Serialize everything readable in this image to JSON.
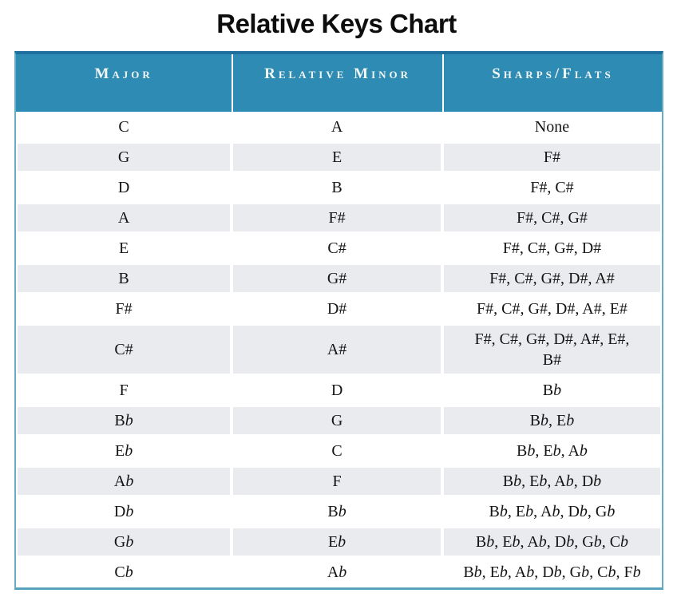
{
  "page": {
    "title": "Relative Keys Chart"
  },
  "chart_data": {
    "type": "table",
    "title": "Relative Keys Chart",
    "columns": [
      "Major",
      "Relative Minor",
      "Sharps/Flats"
    ],
    "rows": [
      [
        "C",
        "A",
        "None"
      ],
      [
        "G",
        "E",
        "F#"
      ],
      [
        "D",
        "B",
        "F#, C#"
      ],
      [
        "A",
        "F#",
        "F#, C#, G#"
      ],
      [
        "E",
        "C#",
        "F#, C#, G#, D#"
      ],
      [
        "B",
        "G#",
        "F#, C#, G#, D#, A#"
      ],
      [
        "F#",
        "D#",
        "F#, C#, G#, D#, A#, E#"
      ],
      [
        "C#",
        "A#",
        "F#, C#, G#, D#, A#, E#,\nB#"
      ],
      [
        "F",
        "D",
        "Bb"
      ],
      [
        "Bb",
        "G",
        "Bb, Eb"
      ],
      [
        "Eb",
        "C",
        "Bb, Eb, Ab"
      ],
      [
        "Ab",
        "F",
        "Bb, Eb, Ab, Db"
      ],
      [
        "Db",
        "Bb",
        "Bb, Eb, Ab, Db, Gb"
      ],
      [
        "Gb",
        "Eb",
        "Bb, Eb, Ab, Db, Gb, Cb"
      ],
      [
        "Cb",
        "Ab",
        "Bb, Eb, Ab, Db, Gb, Cb, Fb"
      ]
    ],
    "layout": {
      "striped_rows": true,
      "flat_symbol_style": "italic b",
      "sharp_symbol": "#"
    }
  },
  "colors": {
    "header_bg": "#2e8cb4",
    "header_text": "#f2f6f2",
    "row_alt_bg": "#e9ebee",
    "row_bg": "#ffffff",
    "table_border": "#69adc3",
    "table_border_top": "#1f6f9e",
    "table_border_bottom": "#58a3bb",
    "cell_text": "#141414",
    "title_text": "#0d0d0d"
  }
}
